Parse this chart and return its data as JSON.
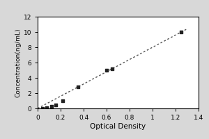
{
  "x_data": [
    0.04,
    0.08,
    0.12,
    0.16,
    0.22,
    0.35,
    0.6,
    0.65,
    1.25
  ],
  "y_data": [
    0.0,
    0.1,
    0.3,
    0.5,
    1.0,
    2.8,
    5.0,
    5.2,
    10.0
  ],
  "line_x": [
    0.0,
    1.3
  ],
  "line_y": [
    0.0,
    10.4
  ],
  "xlabel": "Optical Density",
  "ylabel": "Concentration(ng/mL)",
  "xlim": [
    0,
    1.4
  ],
  "ylim": [
    0,
    12
  ],
  "xticks": [
    0.0,
    0.2,
    0.4,
    0.6,
    0.8,
    1.0,
    1.2,
    1.4
  ],
  "yticks": [
    0,
    2,
    4,
    6,
    8,
    10,
    12
  ],
  "marker_color": "#222222",
  "line_color": "#555555",
  "background_color": "#ffffff",
  "outer_background": "#d8d8d8",
  "border_color": "#000000",
  "xlabel_fontsize": 7.5,
  "ylabel_fontsize": 6.5,
  "tick_fontsize": 6.5,
  "marker_size": 3.5,
  "linewidth": 1.0
}
